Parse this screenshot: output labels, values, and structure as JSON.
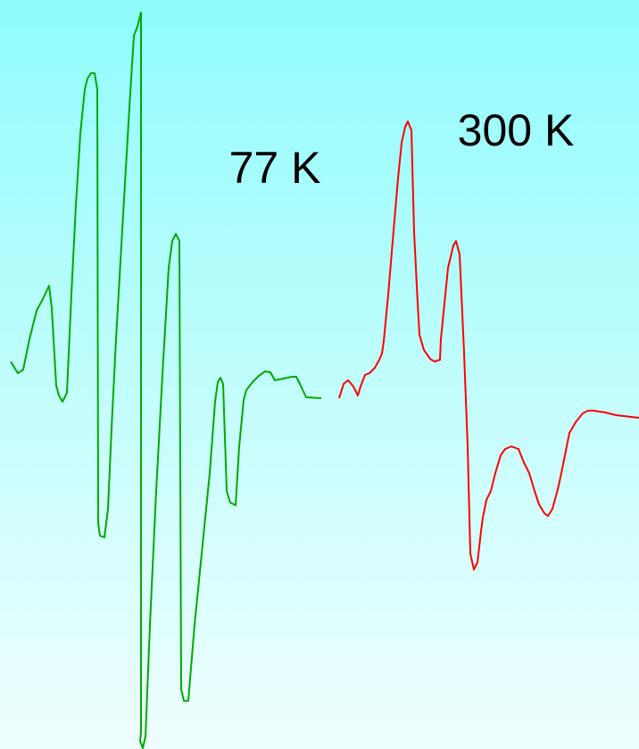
{
  "chart_data": {
    "type": "line",
    "xlim": [
      0,
      716
    ],
    "ylim": [
      -399,
      440
    ],
    "series": [
      {
        "name": "77 K",
        "color": "#00aa00",
        "x": [
          12,
          20,
          26,
          33,
          41,
          48,
          55,
          58,
          63,
          66,
          70,
          75,
          80,
          85,
          90,
          95,
          98,
          102,
          106,
          109,
          110,
          112,
          117,
          121,
          125,
          130,
          138,
          145,
          150,
          154,
          158,
          158,
          157,
          160,
          163,
          168,
          175,
          182,
          189,
          193,
          197,
          201,
          203,
          206,
          211,
          218,
          226,
          235,
          241,
          244,
          247,
          250,
          254,
          258,
          264,
          268,
          273,
          276,
          283,
          290,
          297,
          303,
          308,
          318,
          327,
          332,
          337,
          343,
          360
        ],
        "values": [
          35,
          22,
          26,
          60,
          92,
          105,
          120,
          95,
          8,
          -3,
          -10,
          0,
          110,
          210,
          290,
          340,
          352,
          358,
          358,
          340,
          -146,
          -160,
          -162,
          -130,
          -40,
          60,
          200,
          320,
          400,
          410,
          426,
          -380,
          -390,
          -398,
          -385,
          -260,
          -110,
          20,
          140,
          170,
          178,
          170,
          -332,
          -345,
          -345,
          -260,
          -180,
          -90,
          -10,
          12,
          17,
          10,
          -110,
          -123,
          -126,
          -60,
          -8,
          3,
          12,
          19,
          24,
          23,
          14,
          16,
          18,
          18,
          8,
          -5,
          -6
        ]
      },
      {
        "name": "300 K",
        "color": "#ff0000",
        "x": [
          380,
          385,
          390,
          396,
          401,
          404,
          409,
          414,
          420,
          425,
          428,
          430,
          435,
          440,
          446,
          450,
          454,
          457,
          461,
          464,
          468,
          470,
          475,
          482,
          487,
          493,
          494,
          498,
          502,
          508,
          511,
          515,
          520,
          524,
          527,
          531,
          535,
          539,
          541,
          545,
          550,
          555,
          561,
          566,
          573,
          581,
          587,
          593,
          599,
          604,
          610,
          614,
          619,
          625,
          629,
          633,
          638,
          645,
          653,
          659,
          665,
          678,
          690,
          716
        ],
        "values": [
          -6,
          10,
          14,
          7,
          -3,
          7,
          20,
          22,
          28,
          37,
          44,
          58,
          110,
          170,
          240,
          280,
          298,
          304,
          294,
          180,
          100,
          65,
          48,
          38,
          35,
          37,
          60,
          100,
          140,
          165,
          170,
          155,
          45,
          -60,
          -180,
          -198,
          -190,
          -155,
          -140,
          -120,
          -110,
          -90,
          -70,
          -63,
          -60,
          -63,
          -78,
          -90,
          -110,
          -125,
          -135,
          -138,
          -130,
          -108,
          -90,
          -70,
          -45,
          -33,
          -23,
          -20,
          -20,
          -22,
          -25,
          -28
        ]
      }
    ]
  }
}
